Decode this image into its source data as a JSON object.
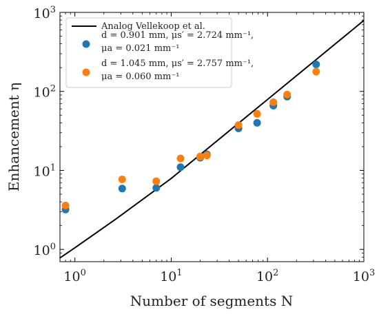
{
  "chart_data": {
    "type": "scatter",
    "x_scale": "log",
    "y_scale": "log",
    "xlim": [
      0.7,
      1000
    ],
    "ylim": [
      0.7,
      1000
    ],
    "xlabel": "Number of segments N",
    "ylabel": "Enhancement η",
    "grid": false,
    "legend_position": "top-left",
    "x_ticks": [
      {
        "base": "10",
        "exp": "0",
        "value": 1
      },
      {
        "base": "10",
        "exp": "1",
        "value": 10
      },
      {
        "base": "10",
        "exp": "2",
        "value": 100
      },
      {
        "base": "10",
        "exp": "3",
        "value": 1000
      }
    ],
    "y_ticks": [
      {
        "base": "10",
        "exp": "0",
        "value": 1
      },
      {
        "base": "10",
        "exp": "1",
        "value": 10
      },
      {
        "base": "10",
        "exp": "2",
        "value": 100
      },
      {
        "base": "10",
        "exp": "3",
        "value": 1000
      }
    ],
    "series": [
      {
        "name": "Analog Vellekoop et al.",
        "kind": "line",
        "color": "#000000",
        "points": [
          [
            0.7,
            0.78
          ],
          [
            1,
            1.05
          ],
          [
            2.7,
            2.45
          ],
          [
            10,
            7.9
          ],
          [
            100,
            79
          ],
          [
            1000,
            790
          ]
        ]
      },
      {
        "name": "d = 0.901 mm, μs′ = 2.724 mm⁻¹, μa = 0.021 mm⁻¹",
        "legend_lines": [
          "d = 0.901 mm, μs′ = 2.724 mm⁻¹,",
          "μa = 0.021 mm⁻¹"
        ],
        "kind": "scatter",
        "color": "#1f77b4",
        "points": [
          [
            0.8,
            3.2
          ],
          [
            3.1,
            5.9
          ],
          [
            7,
            6.0
          ],
          [
            12.5,
            11
          ],
          [
            20,
            14.5
          ],
          [
            23.5,
            16
          ],
          [
            50,
            34
          ],
          [
            78,
            40
          ],
          [
            115,
            66
          ],
          [
            160,
            86
          ],
          [
            320,
            220
          ]
        ]
      },
      {
        "name": "d = 1.045 mm, μs′ = 2.757 mm⁻¹, μa = 0.060 mm⁻¹",
        "legend_lines": [
          "d = 1.045 mm, μs′ = 2.757 mm⁻¹,",
          "μa = 0.060 mm⁻¹"
        ],
        "kind": "scatter",
        "color": "#ff7f0e",
        "points": [
          [
            0.8,
            3.6
          ],
          [
            3.1,
            7.7
          ],
          [
            7,
            7.3
          ],
          [
            12.5,
            14.2
          ],
          [
            20,
            15
          ],
          [
            23.5,
            15.5
          ],
          [
            50,
            37.5
          ],
          [
            78,
            52
          ],
          [
            115,
            73
          ],
          [
            160,
            91
          ],
          [
            320,
            178
          ]
        ]
      }
    ]
  }
}
